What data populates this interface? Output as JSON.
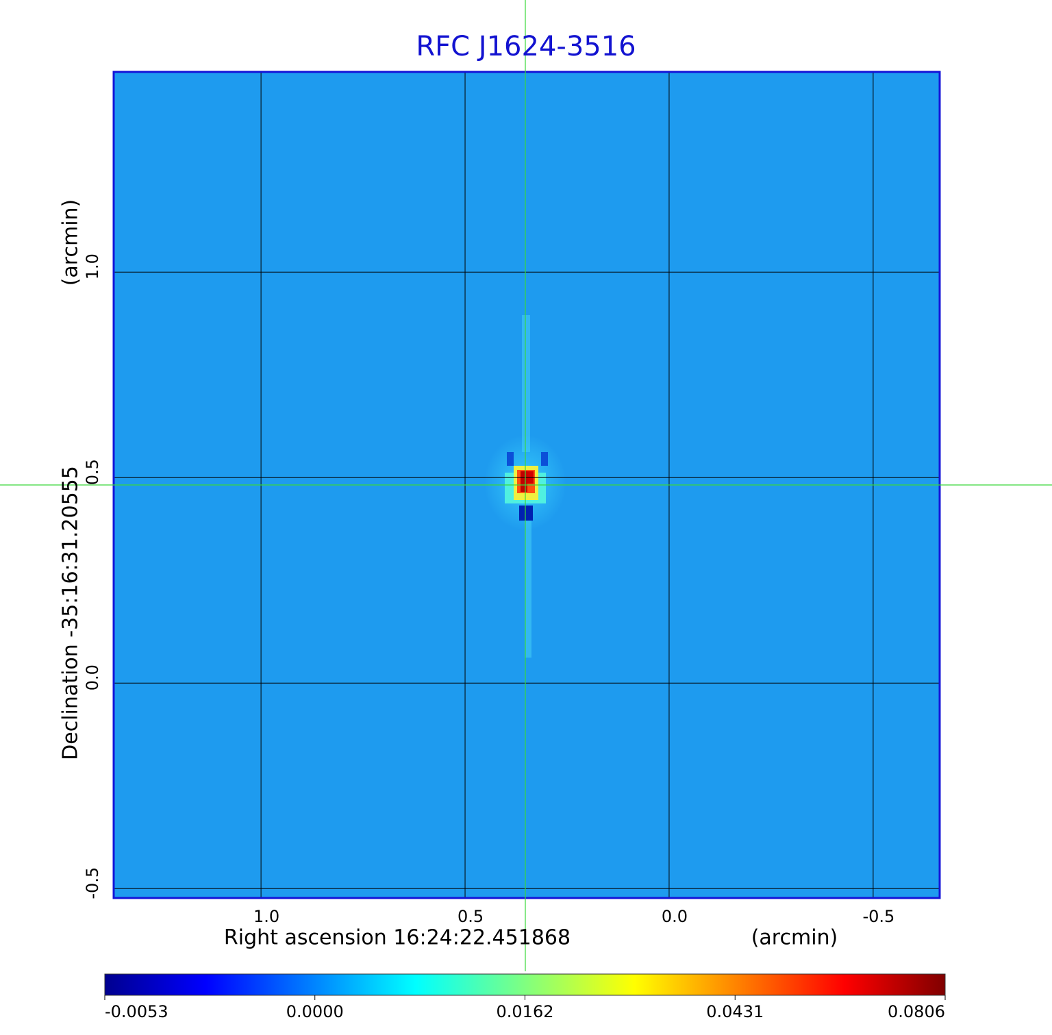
{
  "chart_data": {
    "type": "image",
    "title": "RFC J1624-3516",
    "x_label": "Right ascension  16:24:22.451868",
    "x_unit": "(arcmin)",
    "y_label": "Declination  -35:16:31.20555",
    "y_unit": "(arcmin)",
    "xlim": [
      1.361,
      -0.663
    ],
    "ylim": [
      -0.523,
      1.487
    ],
    "xticks": [
      {
        "value": 1,
        "label": "1.0"
      },
      0.5,
      {
        "value": 0,
        "label": "0.0"
      },
      -0.5
    ],
    "yticks": [
      {
        "value": 1,
        "label": "1.0"
      },
      0.5,
      {
        "value": 0,
        "label": "0.0"
      },
      -0.5
    ],
    "grid": true,
    "colormap": "jet",
    "colorbar_ticks": [
      -0.0053,
      {
        "value": 0,
        "label": "0.0000"
      },
      0.0162,
      0.0431,
      0.0806
    ]
  }
}
